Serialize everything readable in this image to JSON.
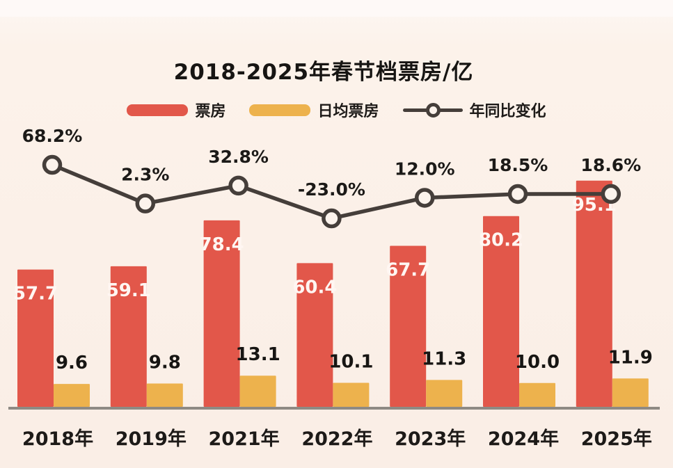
{
  "chart": {
    "title": "2018-2025年春节档票房/亿",
    "legend": [
      {
        "label": "票房",
        "type": "bar",
        "color": "#e2574a"
      },
      {
        "label": "日均票房",
        "type": "bar",
        "color": "#edb24d"
      },
      {
        "label": "年同比变化",
        "type": "line",
        "color": "#453e3a"
      }
    ]
  },
  "chart_data": {
    "type": "bar",
    "title": "2018-2025年春节档票房/亿",
    "xlabel": "",
    "ylabel": "",
    "grid": false,
    "legend_position": "top",
    "categories": [
      "2018年",
      "2019年",
      "2021年",
      "2022年",
      "2023年",
      "2024年",
      "2025年"
    ],
    "series": [
      {
        "name": "票房",
        "type": "bar",
        "color": "#e2574a",
        "values": [
          57.7,
          59.1,
          78.4,
          60.4,
          67.7,
          80.2,
          95.1
        ],
        "labels": [
          "57.7",
          "59.1",
          "78.4",
          "60.4",
          "67.7",
          "80.2",
          "95.1"
        ]
      },
      {
        "name": "日均票房",
        "type": "bar",
        "color": "#edb24d",
        "values": [
          9.6,
          9.8,
          13.1,
          10.1,
          11.3,
          10.0,
          11.9
        ],
        "labels": [
          "9.6",
          "9.8",
          "13.1",
          "10.1",
          "11.3",
          "10.0",
          "11.9"
        ]
      },
      {
        "name": "年同比变化",
        "type": "line",
        "color": "#453e3a",
        "unit": "%",
        "values": [
          68.2,
          2.3,
          32.8,
          -23.0,
          12.0,
          18.5,
          18.6
        ],
        "labels": [
          "68.2%",
          "2.3%",
          "32.8%",
          "-23.0%",
          "12.0%",
          "18.5%",
          "18.6%"
        ]
      }
    ]
  }
}
